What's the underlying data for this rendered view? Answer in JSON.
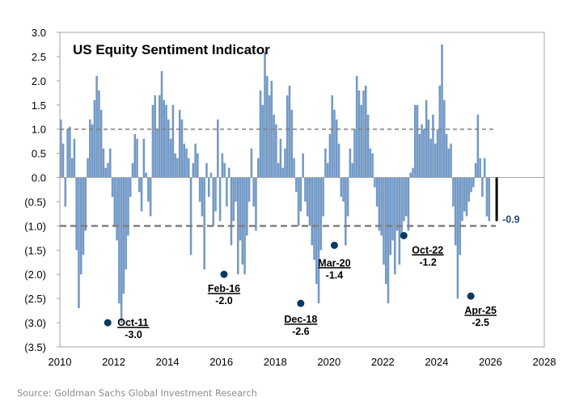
{
  "chart_data": {
    "type": "bar",
    "title": "US Equity Sentiment Indicator",
    "xlabel": "",
    "ylabel": "",
    "xlim": [
      2010,
      2028
    ],
    "ylim": [
      -3.5,
      3.0
    ],
    "x_ticks": [
      "2010",
      "2012",
      "2014",
      "2016",
      "2018",
      "2020",
      "2022",
      "2024",
      "2026",
      "2028"
    ],
    "y_ticks": [
      {
        "value": 3.0,
        "label": "3.0"
      },
      {
        "value": 2.5,
        "label": "2.5"
      },
      {
        "value": 2.0,
        "label": "2.0"
      },
      {
        "value": 1.5,
        "label": "1.5"
      },
      {
        "value": 1.0,
        "label": "1.0"
      },
      {
        "value": 0.5,
        "label": "0.5"
      },
      {
        "value": 0.0,
        "label": "0.0"
      },
      {
        "value": -0.5,
        "label": "(0.5)"
      },
      {
        "value": -1.0,
        "label": "(1.0)"
      },
      {
        "value": -1.5,
        "label": "(1.5)"
      },
      {
        "value": -2.0,
        "label": "(2.0)"
      },
      {
        "value": -2.5,
        "label": "(2.5)"
      },
      {
        "value": -3.0,
        "label": "(3.0)"
      },
      {
        "value": -3.5,
        "label": "(3.5)"
      }
    ],
    "grid": false,
    "reference_lines": [
      {
        "value": 1.0,
        "style": "dashed-thin",
        "to_x": 2026.2
      },
      {
        "value": -1.0,
        "style": "dashed-thick",
        "to_x": 2026.2
      }
    ],
    "series": [
      {
        "name": "US Equity Sentiment Indicator",
        "color": "#7399c6",
        "start_year": 2010.0,
        "step_years": 0.0833,
        "values": [
          1.2,
          0.7,
          -0.6,
          1.0,
          1.05,
          0.4,
          0.8,
          -1.5,
          -2.7,
          -2.0,
          -1.6,
          -1.1,
          0.4,
          1.2,
          1.1,
          1.6,
          2.1,
          1.8,
          1.4,
          0.6,
          0.2,
          0.3,
          0.6,
          -0.4,
          -1.0,
          -1.3,
          -2.6,
          -3.0,
          -2.4,
          -1.9,
          -1.2,
          -0.4,
          0.3,
          0.9,
          0.8,
          -0.3,
          -0.7,
          0.8,
          0.1,
          -0.5,
          -0.8,
          1.5,
          1.7,
          1.0,
          1.7,
          2.2,
          1.6,
          1.5,
          1.2,
          0.8,
          1.5,
          0.5,
          0.4,
          1.4,
          1.2,
          0.7,
          0.6,
          0.4,
          -1.6,
          0.3,
          0.7,
          0.5,
          -0.5,
          -0.8,
          -1.9,
          0.3,
          -0.4,
          0.1,
          -1.0,
          -0.7,
          1.2,
          -0.9,
          0.5,
          0.3,
          -0.6,
          0.2,
          -1.4,
          -0.9,
          -0.5,
          -2.0,
          -1.3,
          -1.8,
          -2.0,
          -1.2,
          -0.5,
          0.6,
          -0.6,
          -1.1,
          0.4,
          1.8,
          1.5,
          2.6,
          2.1,
          1.7,
          2.0,
          1.3,
          1.1,
          0.3,
          0.8,
          0.2,
          0.6,
          1.7,
          1.9,
          1.4,
          0.4,
          -0.3,
          -1.0,
          -0.7,
          0.5,
          -0.5,
          -0.8,
          -1.0,
          -1.4,
          -1.7,
          -2.2,
          -2.6,
          -1.5,
          -0.8,
          0.6,
          0.3,
          0.9,
          1.7,
          1.4,
          1.2,
          0.7,
          -0.4,
          -0.5,
          -1.4,
          -0.8,
          0.6,
          0.3,
          1.0,
          2.1,
          1.8,
          1.5,
          1.8,
          1.9,
          1.3,
          0.6,
          0.5,
          -0.2,
          -0.6,
          -1.1,
          -1.2,
          -1.8,
          -2.2,
          -2.6,
          -1.6,
          -1.3,
          -2.0,
          -1.1,
          -1.8,
          -1.2,
          -0.9,
          -0.8,
          -1.1,
          0.1,
          0.2,
          1.5,
          1.5,
          0.9,
          1.1,
          1.0,
          1.6,
          1.2,
          0.8,
          1.3,
          0.7,
          1.0,
          1.9,
          2.75,
          1.6,
          0.9,
          0.6,
          0.7,
          -0.6,
          -1.4,
          -2.5,
          -1.6,
          -0.9,
          -0.7,
          -0.8,
          -0.5,
          -0.3,
          -0.2,
          0.3,
          1.3,
          0.4,
          -0.4,
          0.4,
          -0.8,
          -0.9
        ]
      }
    ],
    "annotations": [
      {
        "label": "Oct-11",
        "value_label": "-3.0",
        "x": 2011.78,
        "y": -3.0
      },
      {
        "label": "Feb-16",
        "value_label": "-2.0",
        "x": 2016.1,
        "y": -2.0
      },
      {
        "label": "Dec-18",
        "value_label": "-2.6",
        "x": 2018.95,
        "y": -2.6
      },
      {
        "label": "Mar-20",
        "value_label": "-1.4",
        "x": 2020.2,
        "y": -1.4
      },
      {
        "label": "Oct-22",
        "value_label": "-1.2",
        "x": 2022.78,
        "y": -1.2
      },
      {
        "label": "Apr-25",
        "value_label": "-2.5",
        "x": 2025.27,
        "y": -2.45
      }
    ],
    "latest": {
      "value": -0.9,
      "label": "-0.9",
      "x": 2026.2
    }
  },
  "source": "Source: Goldman Sachs Global Investment Research"
}
